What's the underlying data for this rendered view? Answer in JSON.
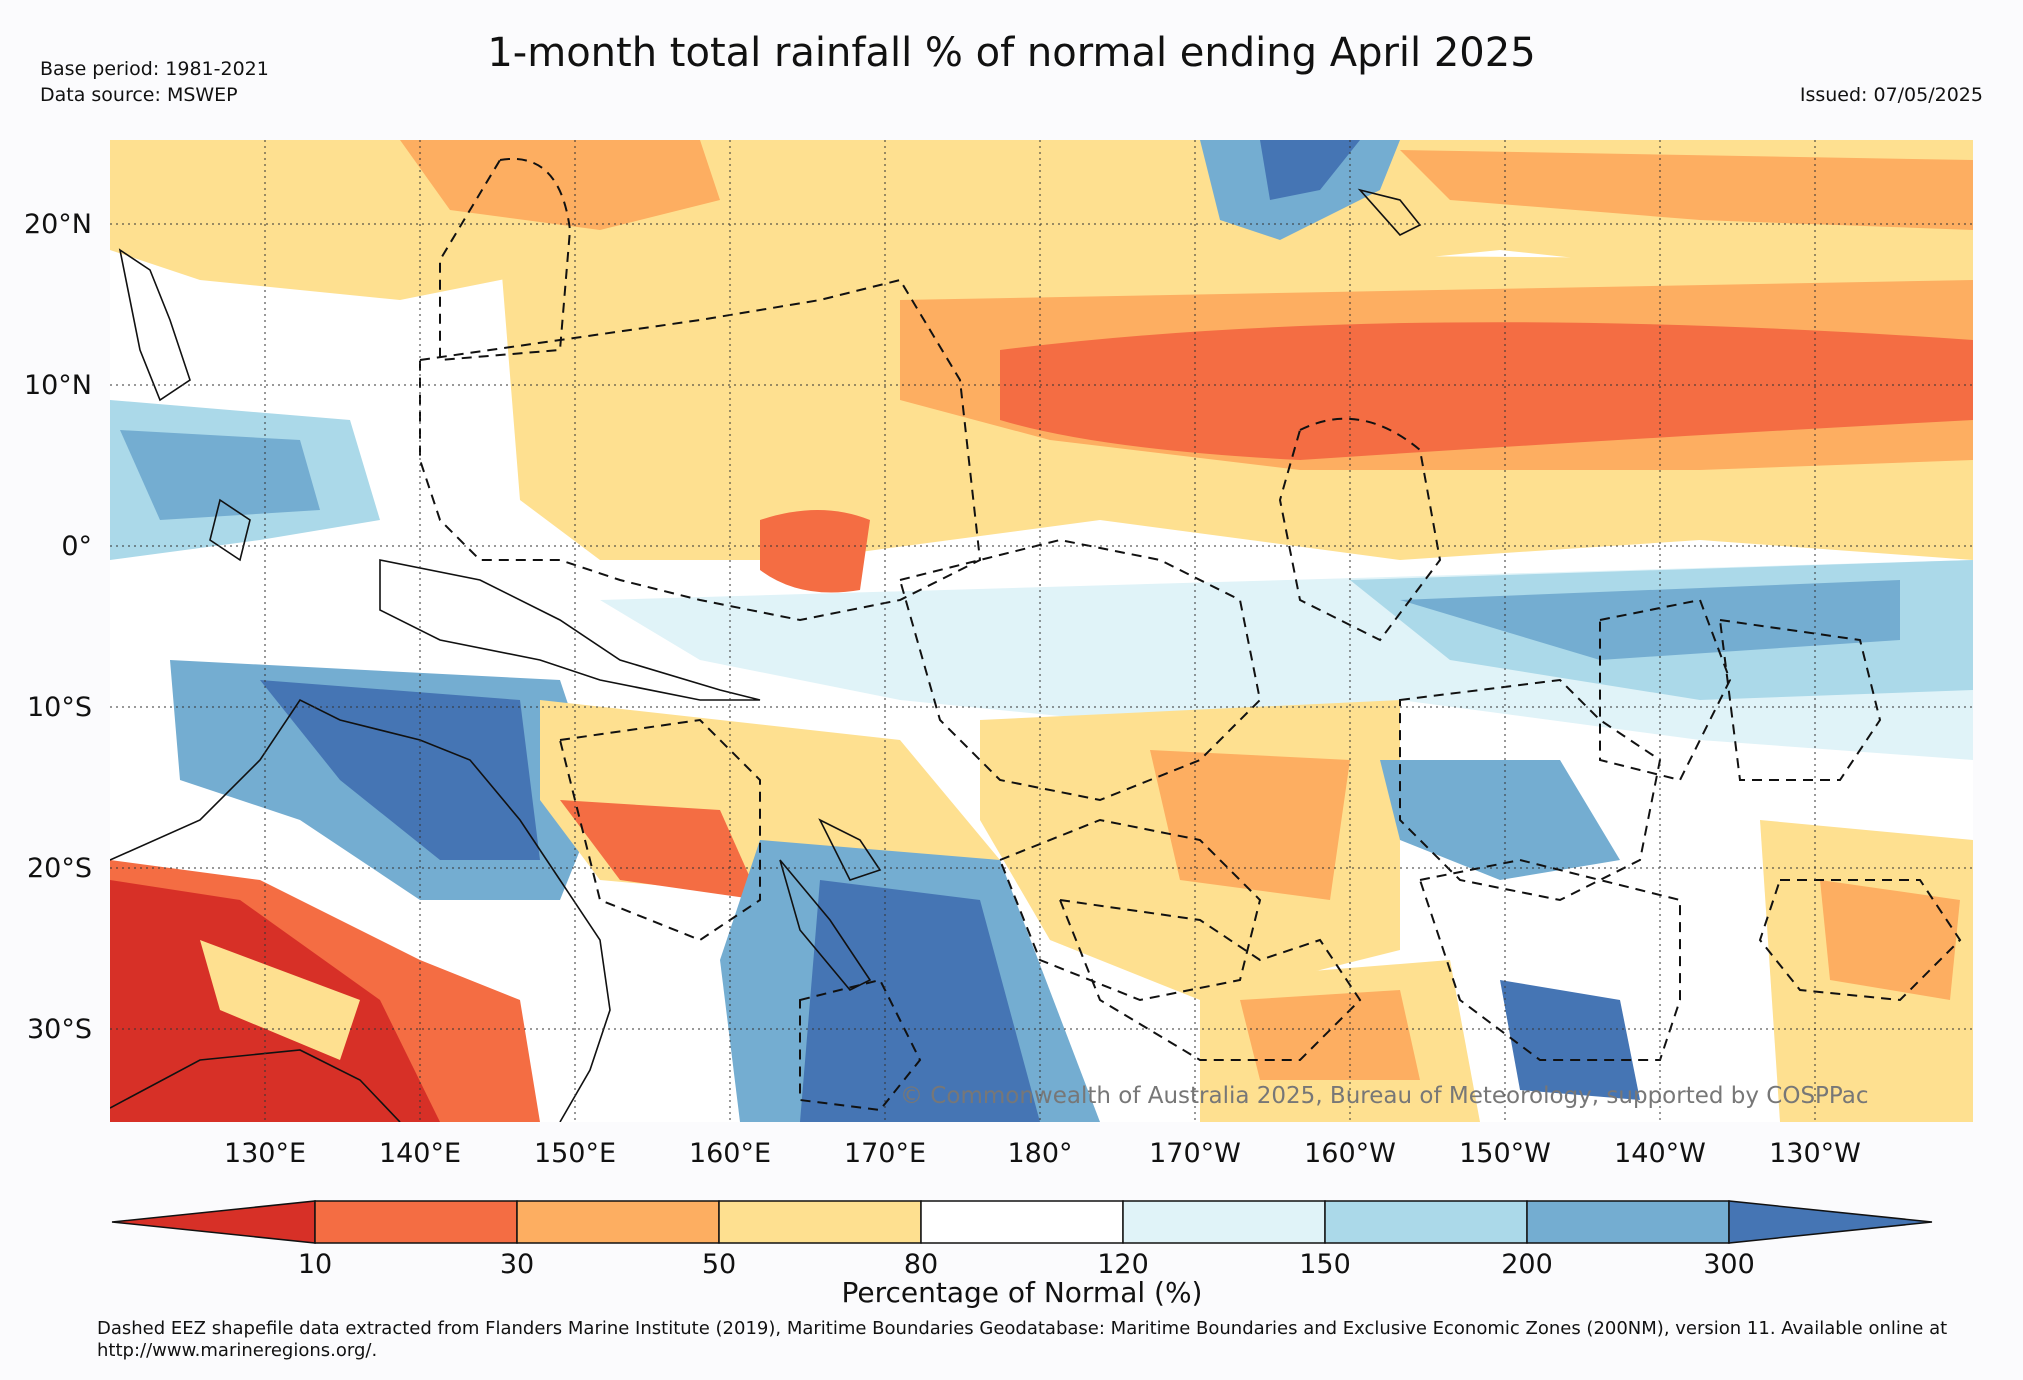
{
  "header": {
    "title": "1-month total rainfall % of normal ending April 2025",
    "base_period": "Base period: 1981-2021",
    "data_source": "Data source: MSWEP",
    "issued": "Issued: 07/05/2025"
  },
  "map": {
    "lon_labels": [
      "130°E",
      "140°E",
      "150°E",
      "160°E",
      "170°E",
      "180°",
      "170°W",
      "160°W",
      "150°W",
      "140°W",
      "130°W"
    ],
    "lat_labels": [
      "20°N",
      "10°N",
      "0°",
      "10°S",
      "20°S",
      "30°S"
    ],
    "copyright": "© Commonwealth of Australia 2025, Bureau of Meteorology, supported by COSPPac",
    "grid": "dotted",
    "overlay": "Dashed EEZ boundaries"
  },
  "colorbar": {
    "title": "Percentage of Normal (%)",
    "tick_labels": [
      "10",
      "30",
      "50",
      "80",
      "120",
      "150",
      "200",
      "300"
    ],
    "colors": [
      "#d73027",
      "#f46d43",
      "#fdae61",
      "#fee090",
      "#ffffff",
      "#e0f3f8",
      "#abd9e9",
      "#74add1",
      "#4575b4"
    ]
  },
  "footnote": {
    "text": "Dashed EEZ shapefile data extracted from Flanders Marine Institute (2019), Maritime Boundaries Geodatabase: Maritime Boundaries and Exclusive Economic Zones (200NM), version 11. Available online at http://www.marineregions.org/."
  }
}
